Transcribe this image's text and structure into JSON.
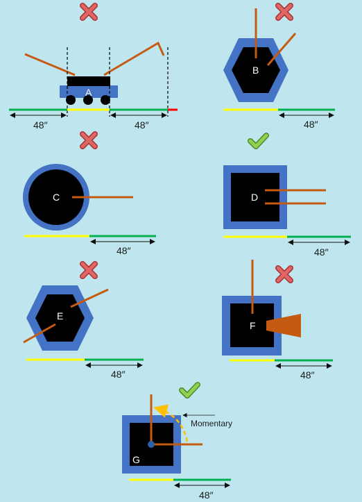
{
  "panels": {
    "a": {
      "label": "A",
      "ok": false,
      "dims": [
        "48″",
        "48″"
      ]
    },
    "b": {
      "label": "B",
      "ok": false,
      "dim": "48″"
    },
    "c": {
      "label": "C",
      "ok": false,
      "dim": "48″"
    },
    "d": {
      "label": "D",
      "ok": true,
      "dim": "48″"
    },
    "e": {
      "label": "E",
      "ok": false,
      "dim": "48″"
    },
    "f": {
      "label": "F",
      "ok": false,
      "dim": "48″"
    },
    "g": {
      "label": "G",
      "ok": true,
      "dim": "48″",
      "note": "Momentary"
    }
  },
  "colors": {
    "background": "#bfe6ef",
    "blue": "#4472c4",
    "black": "#000000",
    "arm": "#c55a11",
    "green": "#00b050",
    "yellow": "#ffff00",
    "red": "#ff0000",
    "cross": "#d9534f",
    "check": "#7dc242",
    "arc": "#ffc000"
  }
}
